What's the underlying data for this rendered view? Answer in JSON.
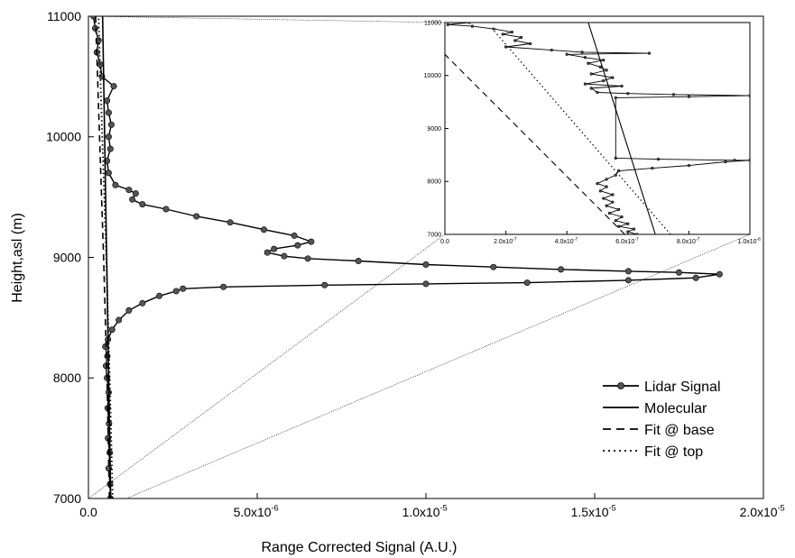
{
  "chart_data": [
    {
      "type": "line",
      "xlabel": "Range Corrected Signal (A.U.)",
      "ylabel": "Height,asl (m)",
      "xlim": [
        0,
        2e-05
      ],
      "ylim": [
        7000,
        11000
      ],
      "x_ticks": [
        0,
        5e-06,
        1e-05,
        1.5e-05,
        2e-05
      ],
      "x_tick_labels": [
        "0.0",
        "5.0x10",
        "1.0x10",
        "1.5x10",
        "2.0x10"
      ],
      "x_tick_exponents": [
        "",
        "-6",
        "-5",
        "-5",
        "-5"
      ],
      "y_ticks": [
        7000,
        8000,
        9000,
        10000,
        11000
      ],
      "y_tick_labels": [
        "7000",
        "8000",
        "9000",
        "10000",
        "11000"
      ],
      "legend_position": "bottom-right",
      "grid": false,
      "series": [
        {
          "name": "Lidar Signal",
          "style": "line-with-dots",
          "points": [
            [
              6.5e-07,
              7000
            ],
            [
              6.4e-07,
              7120
            ],
            [
              6e-07,
              7250
            ],
            [
              6.3e-07,
              7380
            ],
            [
              5.8e-07,
              7500
            ],
            [
              6.1e-07,
              7620
            ],
            [
              5.7e-07,
              7750
            ],
            [
              6e-07,
              7880
            ],
            [
              5.5e-07,
              8000
            ],
            [
              5.2e-07,
              8100
            ],
            [
              5.6e-07,
              8180
            ],
            [
              5e-07,
              8260
            ],
            [
              5.8e-07,
              8320
            ],
            [
              7e-07,
              8400
            ],
            [
              9e-07,
              8480
            ],
            [
              1.2e-06,
              8560
            ],
            [
              1.6e-06,
              8620
            ],
            [
              2.1e-06,
              8680
            ],
            [
              2.6e-06,
              8720
            ],
            [
              2.8e-06,
              8740
            ],
            [
              4e-06,
              8755
            ],
            [
              7e-06,
              8770
            ],
            [
              1e-05,
              8780
            ],
            [
              1.3e-05,
              8790
            ],
            [
              1.6e-05,
              8810
            ],
            [
              1.8e-05,
              8830
            ],
            [
              1.87e-05,
              8860
            ],
            [
              1.75e-05,
              8875
            ],
            [
              1.6e-05,
              8885
            ],
            [
              1.4e-05,
              8900
            ],
            [
              1.2e-05,
              8920
            ],
            [
              1e-05,
              8940
            ],
            [
              8e-06,
              8970
            ],
            [
              6.5e-06,
              8990
            ],
            [
              5.8e-06,
              9010
            ],
            [
              5.3e-06,
              9040
            ],
            [
              5.5e-06,
              9070
            ],
            [
              6.2e-06,
              9100
            ],
            [
              6.6e-06,
              9130
            ],
            [
              6.1e-06,
              9180
            ],
            [
              5.2e-06,
              9230
            ],
            [
              4.2e-06,
              9290
            ],
            [
              3.2e-06,
              9340
            ],
            [
              2.3e-06,
              9400
            ],
            [
              1.6e-06,
              9440
            ],
            [
              1.3e-06,
              9480
            ],
            [
              1.4e-06,
              9530
            ],
            [
              1.2e-06,
              9560
            ],
            [
              8e-07,
              9600
            ],
            [
              6e-07,
              9700
            ],
            [
              5.5e-07,
              9800
            ],
            [
              6.5e-07,
              9900
            ],
            [
              6e-07,
              10000
            ],
            [
              6.8e-07,
              10100
            ],
            [
              6e-07,
              10200
            ],
            [
              5.5e-07,
              10300
            ],
            [
              7.5e-07,
              10420
            ],
            [
              4e-07,
              10500
            ],
            [
              3.5e-07,
              10600
            ],
            [
              2.5e-07,
              10700
            ],
            [
              3e-07,
              10800
            ],
            [
              2e-07,
              10900
            ],
            [
              1.5e-07,
              11000
            ]
          ]
        },
        {
          "name": "Molecular",
          "style": "solid",
          "points": [
            [
              6.6e-07,
              7000
            ],
            [
              4.2e-07,
              11000
            ]
          ]
        },
        {
          "name": "Fit @ base",
          "style": "dashed",
          "points": [
            [
              6.2e-07,
              7000
            ],
            [
              5.5e-07,
              8000
            ],
            [
              4.5e-07,
              9000
            ],
            [
              3.3e-07,
              10000
            ],
            [
              2.1e-07,
              11000
            ]
          ]
        },
        {
          "name": "Fit @ top",
          "style": "dotted",
          "points": [
            [
              7.2e-07,
              7000
            ],
            [
              6.3e-07,
              8000
            ],
            [
              5.3e-07,
              9000
            ],
            [
              4.1e-07,
              10000
            ],
            [
              3e-07,
              11000
            ]
          ]
        }
      ]
    },
    {
      "type": "line",
      "role": "inset",
      "xlim": [
        0,
        1e-06
      ],
      "ylim": [
        7000,
        11000
      ],
      "x_ticks": [
        0,
        2e-07,
        4e-07,
        6e-07,
        8e-07,
        1e-06
      ],
      "x_tick_labels": [
        "0.0",
        "2.0x10",
        "4.0x10",
        "6.0x10",
        "8.0x10",
        "1.0x10"
      ],
      "x_tick_exponents": [
        "",
        "-7",
        "-7",
        "-7",
        "-7",
        "-6"
      ],
      "y_ticks": [
        7000,
        8000,
        9000,
        10000,
        11000
      ],
      "y_tick_labels": [
        "7000",
        "8000",
        "9000",
        "10000",
        "11000"
      ],
      "series": [
        {
          "name": "Lidar Signal",
          "style": "line-with-dots",
          "points": [
            [
              6.3e-07,
              7000
            ],
            [
              6e-07,
              7050
            ],
            [
              6.2e-07,
              7100
            ],
            [
              5.7e-07,
              7150
            ],
            [
              6e-07,
              7200
            ],
            [
              5.6e-07,
              7260
            ],
            [
              5.8e-07,
              7330
            ],
            [
              5.4e-07,
              7400
            ],
            [
              5.7e-07,
              7470
            ],
            [
              5.3e-07,
              7540
            ],
            [
              5.5e-07,
              7610
            ],
            [
              5.2e-07,
              7680
            ],
            [
              5.5e-07,
              7750
            ],
            [
              5.1e-07,
              7820
            ],
            [
              5.3e-07,
              7900
            ],
            [
              5e-07,
              7960
            ],
            [
              5.3e-07,
              8040
            ],
            [
              5.6e-07,
              8120
            ],
            [
              5.7e-07,
              8200
            ],
            [
              6.8e-07,
              8250
            ],
            [
              8e-07,
              8300
            ],
            [
              9.2e-07,
              8370
            ],
            [
              1e-06,
              8400
            ],
            [
              9.5e-07,
              8400
            ],
            [
              7e-07,
              8420
            ],
            [
              5.6e-07,
              8440
            ],
            [
              5.6e-07,
              9580
            ],
            [
              8e-07,
              9600
            ],
            [
              1e-06,
              9620
            ],
            [
              7.5e-07,
              9640
            ],
            [
              6e-07,
              9660
            ],
            [
              5e-07,
              9680
            ],
            [
              4.8e-07,
              9760
            ],
            [
              5.8e-07,
              9800
            ],
            [
              4.6e-07,
              9840
            ],
            [
              5.2e-07,
              9900
            ],
            [
              5.5e-07,
              9960
            ],
            [
              4.8e-07,
              10030
            ],
            [
              5.3e-07,
              10100
            ],
            [
              5.1e-07,
              10160
            ],
            [
              4.7e-07,
              10230
            ],
            [
              5.2e-07,
              10290
            ],
            [
              4.6e-07,
              10340
            ],
            [
              4e-07,
              10400
            ],
            [
              6.7e-07,
              10420
            ],
            [
              4.5e-07,
              10440
            ],
            [
              3.5e-07,
              10480
            ],
            [
              2e-07,
              10540
            ],
            [
              2.8e-07,
              10600
            ],
            [
              2.3e-07,
              10660
            ],
            [
              2.5e-07,
              10720
            ],
            [
              1.9e-07,
              10780
            ],
            [
              2.2e-07,
              10820
            ],
            [
              1.6e-07,
              10880
            ],
            [
              9e-08,
              10930
            ],
            [
              1e-08,
              10960
            ],
            [
              8e-08,
              11000
            ]
          ]
        },
        {
          "name": "Molecular",
          "style": "solid",
          "points": [
            [
              6.9e-07,
              7000
            ],
            [
              4.7e-07,
              11000
            ]
          ]
        },
        {
          "name": "Fit @ base",
          "style": "dashed",
          "points": [
            [
              5.9e-07,
              7000
            ],
            [
              0.0,
              10400
            ]
          ]
        },
        {
          "name": "Fit @ top",
          "style": "dotted",
          "points": [
            [
              7.4e-07,
              7000
            ],
            [
              1.6e-07,
              10850
            ]
          ]
        }
      ]
    }
  ]
}
